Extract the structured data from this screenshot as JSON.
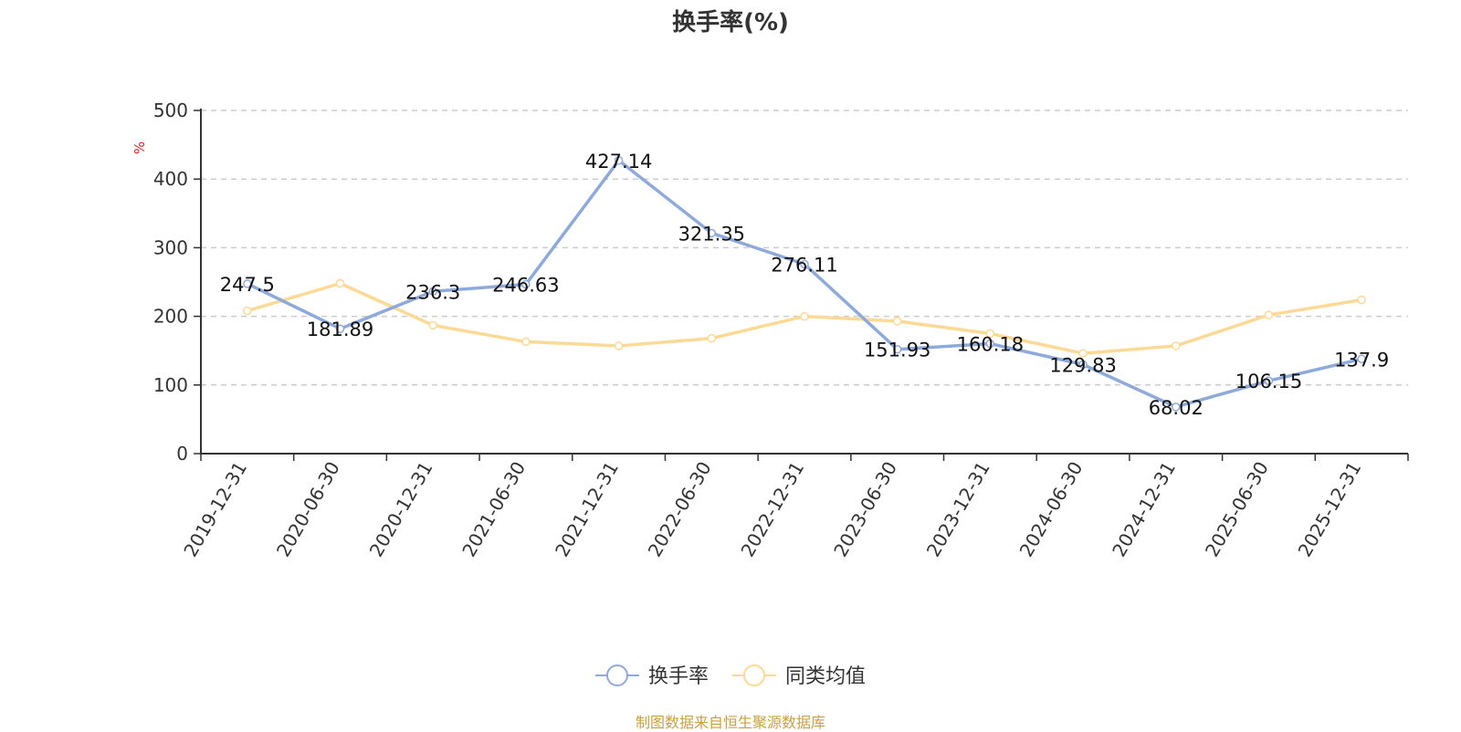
{
  "chart_data": {
    "type": "line",
    "title": "换手率(%)",
    "ylabel": "%",
    "ylim": [
      0,
      500
    ],
    "yticks": [
      0,
      100,
      200,
      300,
      400,
      500
    ],
    "grid": true,
    "legend_position": "bottom",
    "categories": [
      "2019-12-31",
      "2020-06-30",
      "2020-12-31",
      "2021-06-30",
      "2021-12-31",
      "2022-06-30",
      "2022-12-31",
      "2023-06-30",
      "2023-12-31",
      "2024-06-30",
      "2024-12-31",
      "2025-06-30",
      "2025-12-31"
    ],
    "series": [
      {
        "name": "换手率",
        "color": "#8eaadb",
        "values": [
          247.5,
          181.89,
          236.3,
          246.63,
          427.14,
          321.35,
          276.11,
          151.93,
          160.18,
          129.83,
          68.02,
          106.15,
          137.9
        ],
        "labels": [
          "247.5",
          "181.89",
          "236.3",
          "246.63",
          "427.14",
          "321.35",
          "276.11",
          "151.93",
          "160.18",
          "129.83",
          "68.02",
          "106.15",
          "137.9"
        ]
      },
      {
        "name": "同类均值",
        "color": "#fcd995",
        "values": [
          208,
          248,
          187,
          163,
          157,
          168,
          200,
          193,
          175,
          146,
          157,
          202,
          224
        ]
      }
    ]
  },
  "source_note": "制图数据来自恒生聚源数据库"
}
